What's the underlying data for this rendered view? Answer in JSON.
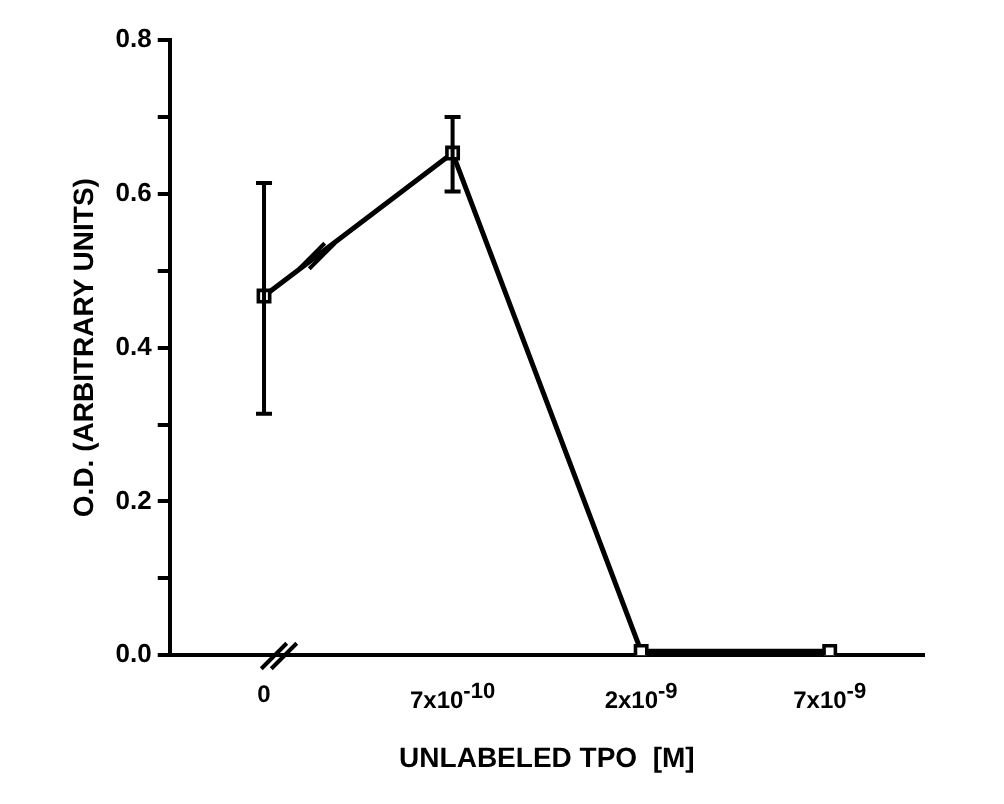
{
  "chart_data": {
    "type": "line",
    "xlabel": "UNLABELED TPO  [M]",
    "ylabel": "O.D. (ARBITRARY UNITS)",
    "categories": [
      "0",
      "7x10$^{-10}$",
      "2x10$^{-9}$",
      "7x10$^{-9}$"
    ],
    "series": [
      {
        "color": "#000000",
        "values": [
          0.467,
          0.653,
          0.005,
          0.005
        ],
        "errors": [
          [
            0.314,
            0.614
          ],
          [
            0.603,
            0.7
          ],
          null,
          null
        ]
      }
    ],
    "ylim": [
      0,
      0.8
    ],
    "yticks": [
      {
        "value": 0,
        "label": "0.0"
      },
      {
        "value": 0.1,
        "label": null
      },
      {
        "value": 0.2,
        "label": "0.2"
      },
      {
        "value": 0.3,
        "label": null
      },
      {
        "value": 0.4,
        "label": "0.4"
      },
      {
        "value": 0.5,
        "label": null
      },
      {
        "value": 0.6,
        "label": "0.6"
      },
      {
        "value": 0.7,
        "label": null
      },
      {
        "value": 0.8,
        "label": "0.8"
      }
    ],
    "marker": "square",
    "line_style": "solid",
    "grid": false,
    "legend": false
  }
}
